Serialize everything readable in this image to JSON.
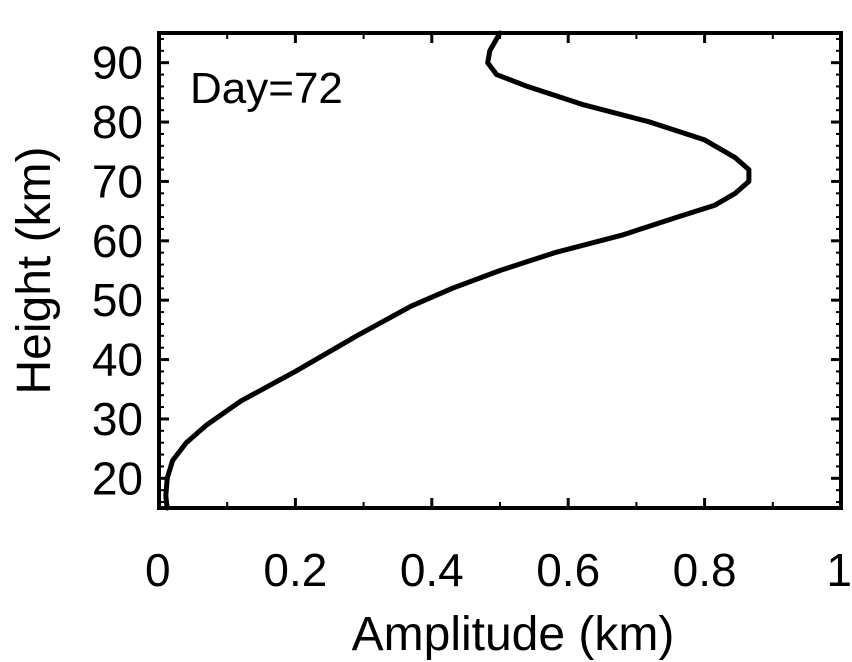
{
  "chart_data": {
    "type": "line",
    "title": "",
    "xlabel": "Amplitude (km)",
    "ylabel": "Height (km)",
    "xlim": [
      0,
      1
    ],
    "ylim": [
      15,
      95
    ],
    "xticks": [
      0,
      0.2,
      0.4,
      0.6,
      0.8,
      1
    ],
    "xtick_labels": [
      "0",
      "0.2",
      "0.4",
      "0.6",
      "0.8",
      "1"
    ],
    "yticks": [
      20,
      30,
      40,
      50,
      60,
      70,
      80,
      90
    ],
    "ytick_labels": [
      "20",
      "30",
      "40",
      "50",
      "60",
      "70",
      "80",
      "90"
    ],
    "grid": false,
    "annotation": "Day=72",
    "line_color": "#000000",
    "series": [
      {
        "x": [
          0.012,
          0.01,
          0.012,
          0.02,
          0.04,
          0.07,
          0.12,
          0.2,
          0.29,
          0.37,
          0.43,
          0.5,
          0.58,
          0.68,
          0.76,
          0.815,
          0.845,
          0.865,
          0.865,
          0.845,
          0.8,
          0.72,
          0.62,
          0.54,
          0.495,
          0.482,
          0.485,
          0.495,
          0.5
        ],
        "y": [
          15,
          17,
          20,
          23,
          26,
          29,
          33,
          38,
          44,
          49,
          52,
          55,
          58,
          61,
          64,
          66,
          68,
          70,
          72,
          74,
          77,
          80,
          83,
          86,
          88,
          90,
          92,
          94,
          95
        ]
      }
    ]
  }
}
